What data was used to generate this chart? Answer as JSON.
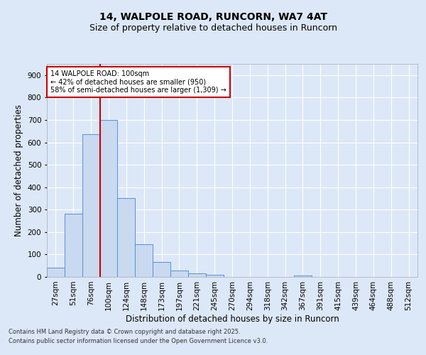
{
  "title1": "14, WALPOLE ROAD, RUNCORN, WA7 4AT",
  "title2": "Size of property relative to detached houses in Runcorn",
  "xlabel": "Distribution of detached houses by size in Runcorn",
  "ylabel": "Number of detached properties",
  "bar_labels": [
    "27sqm",
    "51sqm",
    "76sqm",
    "100sqm",
    "124sqm",
    "148sqm",
    "173sqm",
    "197sqm",
    "221sqm",
    "245sqm",
    "270sqm",
    "294sqm",
    "318sqm",
    "342sqm",
    "367sqm",
    "391sqm",
    "415sqm",
    "439sqm",
    "464sqm",
    "488sqm",
    "512sqm"
  ],
  "bar_values": [
    42,
    283,
    635,
    700,
    350,
    145,
    65,
    28,
    15,
    10,
    0,
    0,
    0,
    0,
    5,
    0,
    0,
    0,
    0,
    0,
    0
  ],
  "bar_color": "#c9d9f0",
  "bar_edge_color": "#5b8fd4",
  "vline_color": "#cc0000",
  "ylim": [
    0,
    950
  ],
  "yticks": [
    0,
    100,
    200,
    300,
    400,
    500,
    600,
    700,
    800,
    900
  ],
  "annotation_text": "14 WALPOLE ROAD: 100sqm\n← 42% of detached houses are smaller (950)\n58% of semi-detached houses are larger (1,309) →",
  "annotation_box_color": "#ffffff",
  "annotation_box_edge": "#cc0000",
  "footer1": "Contains HM Land Registry data © Crown copyright and database right 2025.",
  "footer2": "Contains public sector information licensed under the Open Government Licence v3.0.",
  "background_color": "#dce8f8",
  "plot_bg_color": "#dce8f8",
  "grid_color": "#ffffff",
  "title_fontsize": 10,
  "subtitle_fontsize": 9,
  "axis_label_fontsize": 8.5,
  "tick_fontsize": 7.5,
  "footer_fontsize": 6
}
